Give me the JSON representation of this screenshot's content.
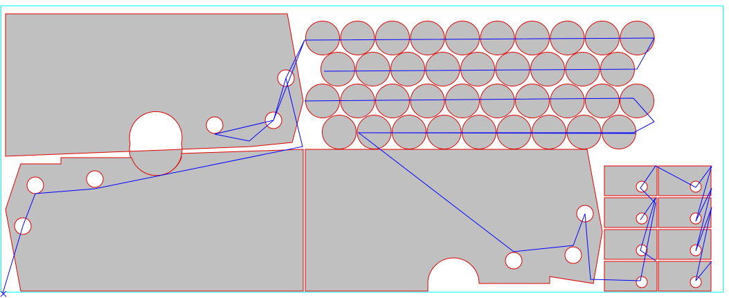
{
  "title": "",
  "colors": {
    "sheet_border": "#00ffff",
    "part_fill": "#c0c0c0",
    "part_outline": "#e00000",
    "toolpath": "#0000ff",
    "background": "#ffffff"
  },
  "icons": {
    "origin": "cross-marker-icon"
  }
}
